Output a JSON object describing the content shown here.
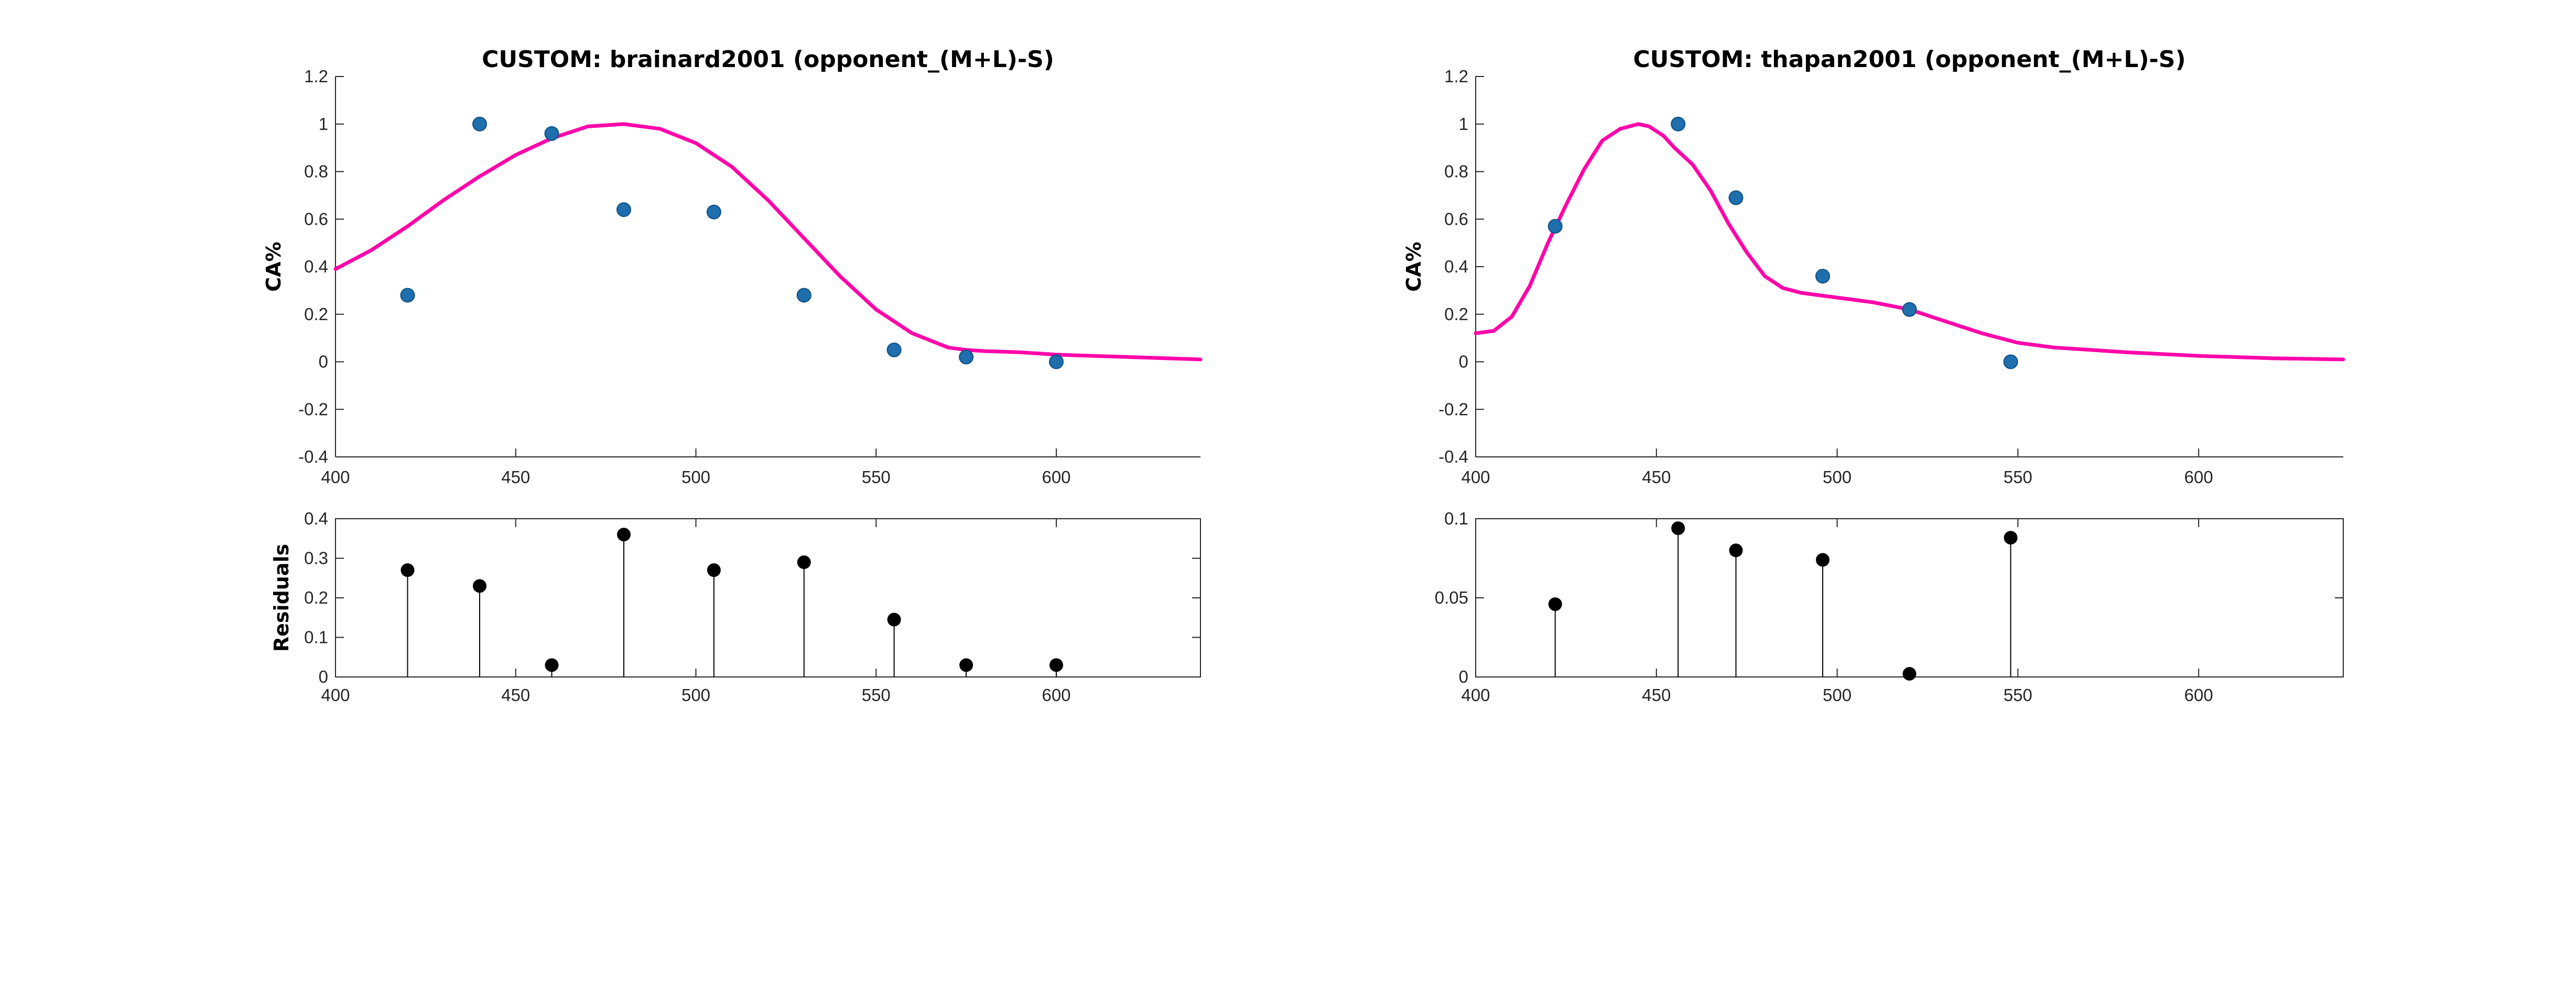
{
  "chart_data": [
    {
      "type": "scatter",
      "title": "CUSTOM: brainard2001 (opponent_(M+L)-S)",
      "ylabel": "CA%",
      "xlim": [
        400,
        640
      ],
      "ylim": [
        -0.4,
        1.2
      ],
      "xticks": [
        400,
        450,
        500,
        550,
        600
      ],
      "yticks": [
        -0.4,
        -0.2,
        0,
        0.2,
        0.4,
        0.6,
        0.8,
        1,
        1.2
      ],
      "ytick_labels": [
        "-0.4",
        "-0.2",
        "0",
        "0.2",
        "0.4",
        "0.6",
        "0.8",
        "1",
        "1.2"
      ],
      "points": {
        "x": [
          420,
          440,
          460,
          480,
          505,
          530,
          555,
          575,
          600
        ],
        "y": [
          0.28,
          1.0,
          0.96,
          0.64,
          0.63,
          0.28,
          0.05,
          0.02,
          0.0
        ]
      },
      "fit": {
        "color": "#ff00aa",
        "x": [
          400,
          410,
          420,
          430,
          440,
          450,
          460,
          470,
          480,
          490,
          500,
          510,
          520,
          530,
          540,
          550,
          560,
          570,
          575,
          580,
          590,
          600,
          620,
          640
        ],
        "y": [
          0.39,
          0.47,
          0.57,
          0.68,
          0.78,
          0.87,
          0.94,
          0.99,
          1.0,
          0.98,
          0.92,
          0.82,
          0.68,
          0.52,
          0.36,
          0.22,
          0.12,
          0.06,
          0.05,
          0.045,
          0.04,
          0.03,
          0.02,
          0.01
        ]
      },
      "residuals": {
        "ylabel": "Residuals",
        "ylim": [
          0,
          0.4
        ],
        "yticks": [
          0,
          0.1,
          0.2,
          0.3,
          0.4
        ],
        "ytick_labels": [
          "0",
          "0.1",
          "0.2",
          "0.3",
          "0.4"
        ],
        "x": [
          420,
          440,
          460,
          480,
          505,
          530,
          555,
          575,
          600
        ],
        "y": [
          0.27,
          0.23,
          0.03,
          0.36,
          0.27,
          0.29,
          0.145,
          0.03,
          0.03
        ]
      }
    },
    {
      "type": "scatter",
      "title": "CUSTOM: thapan2001 (opponent_(M+L)-S)",
      "ylabel": "CA%",
      "xlim": [
        400,
        640
      ],
      "ylim": [
        -0.4,
        1.2
      ],
      "xticks": [
        400,
        450,
        500,
        550,
        600
      ],
      "yticks": [
        -0.4,
        -0.2,
        0,
        0.2,
        0.4,
        0.6,
        0.8,
        1,
        1.2
      ],
      "ytick_labels": [
        "-0.4",
        "-0.2",
        "0",
        "0.2",
        "0.4",
        "0.6",
        "0.8",
        "1",
        "1.2"
      ],
      "points": {
        "x": [
          422,
          456,
          472,
          496,
          520,
          548
        ],
        "y": [
          0.57,
          1.0,
          0.69,
          0.36,
          0.22,
          0.0
        ]
      },
      "fit": {
        "color": "#ff00aa",
        "x": [
          400,
          405,
          410,
          415,
          420,
          425,
          430,
          435,
          440,
          445,
          448,
          452,
          455,
          460,
          465,
          470,
          475,
          480,
          485,
          490,
          495,
          500,
          505,
          510,
          520,
          530,
          540,
          550,
          560,
          570,
          580,
          600,
          620,
          640
        ],
        "y": [
          0.12,
          0.13,
          0.19,
          0.32,
          0.5,
          0.66,
          0.81,
          0.93,
          0.98,
          1.0,
          0.99,
          0.95,
          0.9,
          0.83,
          0.72,
          0.58,
          0.46,
          0.36,
          0.31,
          0.29,
          0.28,
          0.27,
          0.26,
          0.25,
          0.22,
          0.17,
          0.12,
          0.08,
          0.06,
          0.05,
          0.04,
          0.025,
          0.015,
          0.01
        ]
      },
      "residuals": {
        "ylabel": "",
        "ylim": [
          0,
          0.1
        ],
        "yticks": [
          0,
          0.05,
          0.1
        ],
        "ytick_labels": [
          "0",
          "0.05",
          "0.1"
        ],
        "x": [
          422,
          456,
          472,
          496,
          520,
          548
        ],
        "y": [
          0.046,
          0.094,
          0.08,
          0.074,
          0.002,
          0.088
        ]
      }
    }
  ]
}
